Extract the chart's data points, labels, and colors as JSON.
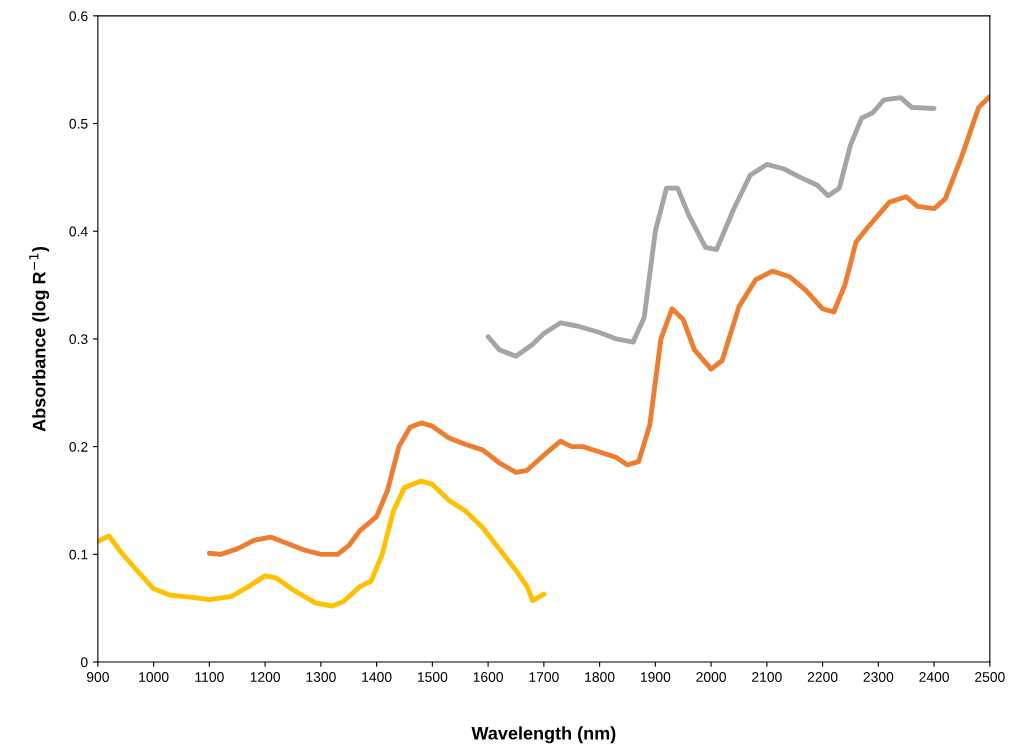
{
  "chart_data": {
    "type": "line",
    "xlabel": "Wavelength (nm)",
    "ylabel": "Absorbance (log R$^{−1}$)",
    "xlim": [
      900,
      2500
    ],
    "xticks": [
      900,
      1000,
      1100,
      1200,
      1300,
      1400,
      1500,
      1600,
      1700,
      1800,
      1900,
      2000,
      2100,
      2200,
      2300,
      2400,
      2500
    ],
    "ylim": [
      0,
      0.6
    ],
    "yticks": [
      0,
      0.1,
      0.2,
      0.3,
      0.4,
      0.5,
      0.6
    ],
    "grid": false,
    "marker": "none",
    "line_style": "solid",
    "series": [
      {
        "color": "#ed7d31",
        "x": [
          1100,
          1120,
          1150,
          1180,
          1210,
          1240,
          1270,
          1300,
          1330,
          1350,
          1370,
          1400,
          1420,
          1440,
          1460,
          1480,
          1500,
          1530,
          1560,
          1590,
          1620,
          1650,
          1670,
          1700,
          1730,
          1750,
          1770,
          1800,
          1830,
          1850,
          1870,
          1890,
          1910,
          1930,
          1950,
          1970,
          2000,
          2020,
          2050,
          2080,
          2110,
          2140,
          2170,
          2200,
          2220,
          2240,
          2260,
          2280,
          2300,
          2320,
          2350,
          2370,
          2400,
          2420,
          2450,
          2480,
          2500
        ],
        "values": [
          0.101,
          0.1,
          0.105,
          0.113,
          0.116,
          0.11,
          0.104,
          0.1,
          0.1,
          0.108,
          0.122,
          0.135,
          0.16,
          0.2,
          0.218,
          0.222,
          0.219,
          0.208,
          0.202,
          0.197,
          0.185,
          0.176,
          0.178,
          0.192,
          0.205,
          0.2,
          0.2,
          0.195,
          0.19,
          0.183,
          0.186,
          0.22,
          0.3,
          0.328,
          0.318,
          0.29,
          0.272,
          0.28,
          0.33,
          0.355,
          0.363,
          0.358,
          0.345,
          0.328,
          0.325,
          0.35,
          0.39,
          0.403,
          0.415,
          0.427,
          0.432,
          0.423,
          0.421,
          0.43,
          0.47,
          0.515,
          0.525
        ]
      },
      {
        "color": "#a5a5a5",
        "x": [
          1600,
          1620,
          1650,
          1680,
          1700,
          1730,
          1760,
          1800,
          1830,
          1860,
          1880,
          1900,
          1920,
          1940,
          1960,
          1990,
          2010,
          2040,
          2070,
          2100,
          2130,
          2160,
          2190,
          2210,
          2230,
          2250,
          2270,
          2290,
          2310,
          2340,
          2360,
          2400
        ],
        "values": [
          0.302,
          0.29,
          0.284,
          0.295,
          0.305,
          0.315,
          0.312,
          0.306,
          0.3,
          0.297,
          0.32,
          0.4,
          0.44,
          0.44,
          0.415,
          0.385,
          0.383,
          0.42,
          0.452,
          0.462,
          0.458,
          0.45,
          0.443,
          0.433,
          0.44,
          0.48,
          0.505,
          0.51,
          0.522,
          0.524,
          0.515,
          0.514
        ]
      },
      {
        "color": "#ffc000",
        "x": [
          900,
          920,
          940,
          970,
          1000,
          1030,
          1070,
          1100,
          1140,
          1170,
          1200,
          1220,
          1250,
          1290,
          1320,
          1340,
          1370,
          1390,
          1410,
          1430,
          1450,
          1480,
          1500,
          1530,
          1560,
          1590,
          1620,
          1650,
          1670,
          1680,
          1690,
          1700
        ],
        "values": [
          0.112,
          0.117,
          0.103,
          0.085,
          0.068,
          0.062,
          0.06,
          0.058,
          0.061,
          0.07,
          0.08,
          0.078,
          0.067,
          0.055,
          0.052,
          0.056,
          0.07,
          0.075,
          0.1,
          0.14,
          0.162,
          0.168,
          0.165,
          0.15,
          0.14,
          0.125,
          0.105,
          0.085,
          0.07,
          0.057,
          0.06,
          0.063
        ]
      }
    ]
  }
}
